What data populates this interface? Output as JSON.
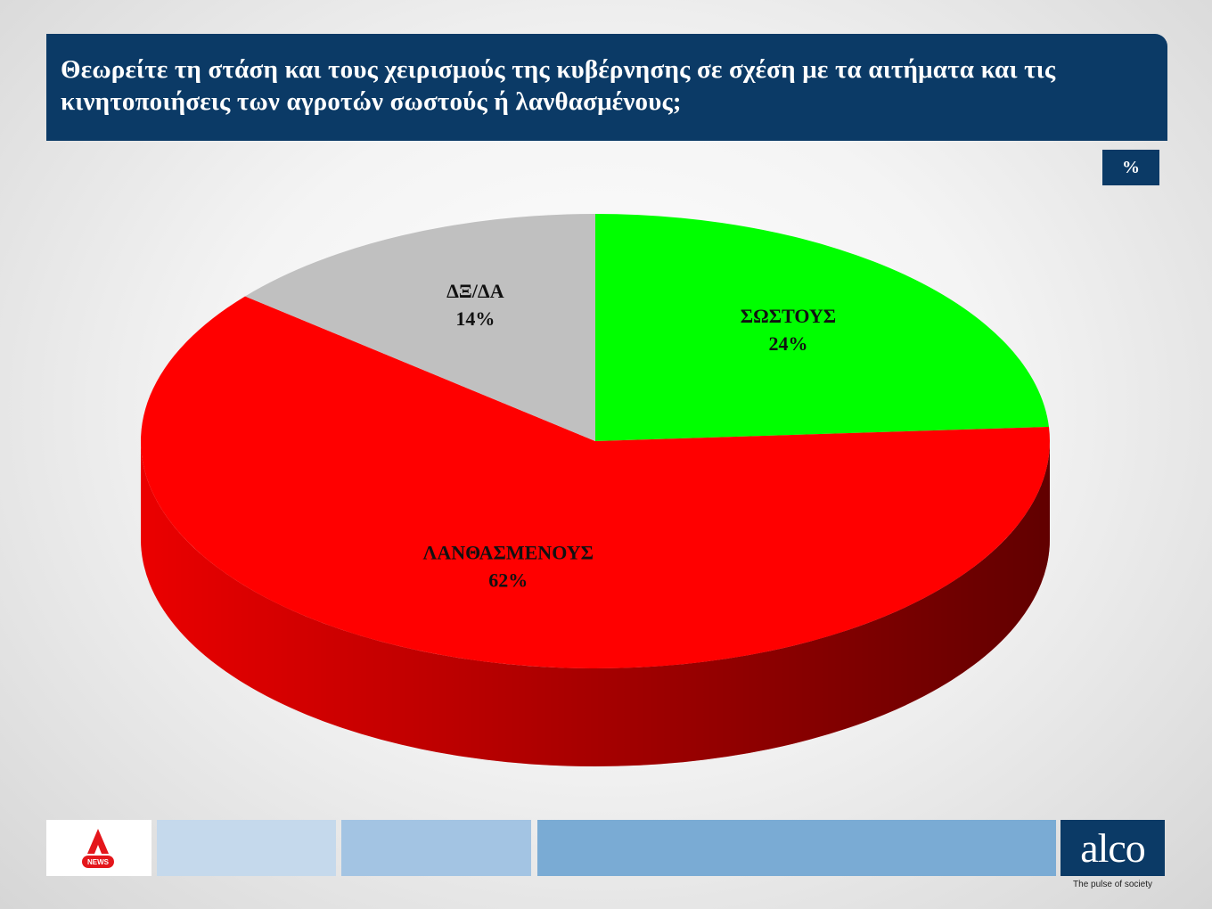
{
  "chart_data": {
    "type": "pie",
    "title": "Θεωρείτε τη στάση και τους χειρισμούς της κυβέρνησης σε σχέση με τα αιτήματα και τις κινητοποιήσεις των αγροτών σωστούς ή λανθασμένους;",
    "unit_label": "%",
    "categories": [
      "ΣΩΣΤΟΥΣ",
      "ΛΑΝΘΑΣΜΕΝΟΥΣ",
      "ΔΞ/ΔΑ"
    ],
    "values": [
      24,
      62,
      14
    ],
    "value_labels": [
      "24%",
      "62%",
      "14%"
    ],
    "colors": [
      "#00ff00",
      "#ff0000",
      "#c0c0c0"
    ]
  },
  "footer": {
    "logo": "NEWS",
    "brand": "alco",
    "tagline": "The pulse of society"
  }
}
